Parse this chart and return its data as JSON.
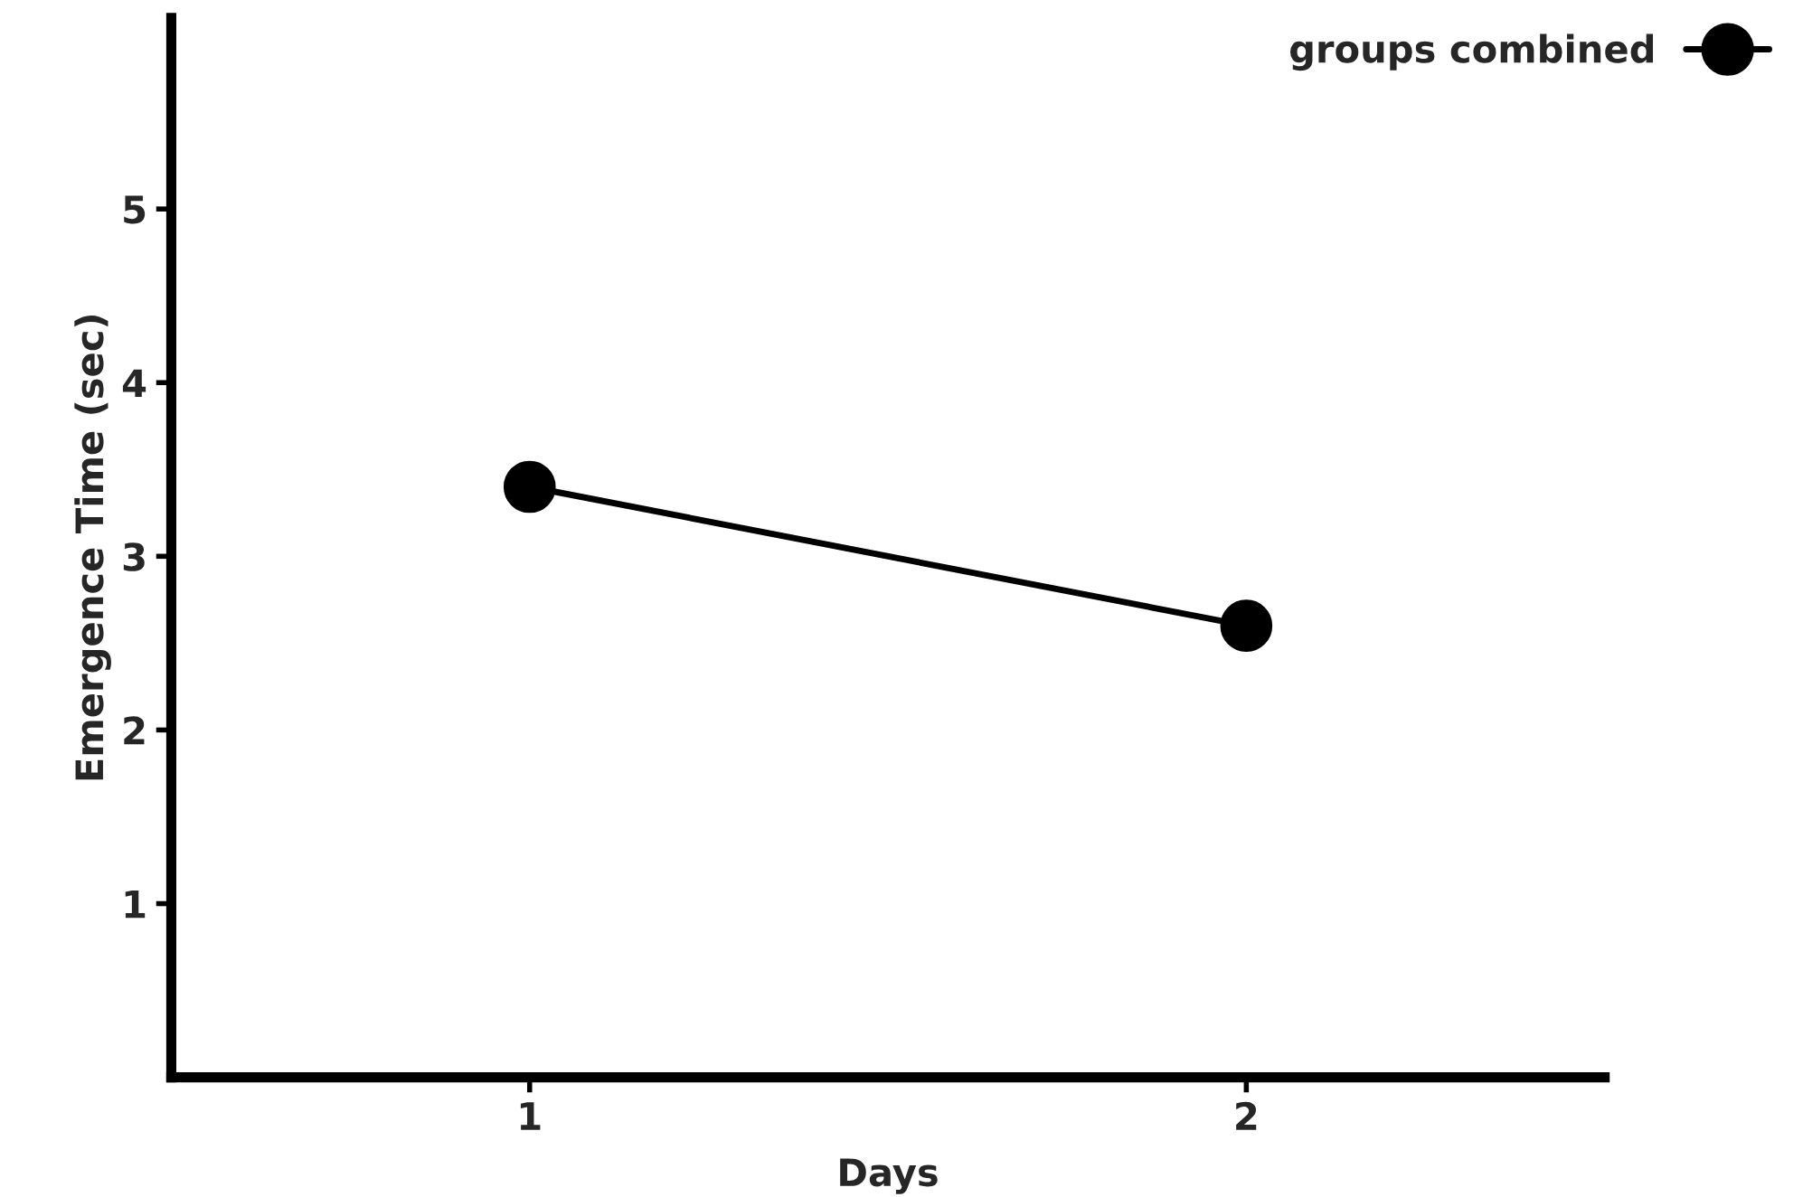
{
  "chart_data": {
    "type": "line",
    "xlabel": "Days",
    "ylabel": "Emergence Time (sec)",
    "x": [
      1,
      2
    ],
    "series": [
      {
        "name": "groups combined",
        "color": "#000000",
        "values": [
          3.4,
          2.6
        ]
      }
    ],
    "xlim": [
      0.5,
      2.5
    ],
    "xticks": [
      1,
      2
    ],
    "ylim": [
      0,
      6.1
    ],
    "yticks": [
      1,
      2,
      3,
      4,
      5
    ],
    "marker": "circle",
    "line_style": "solid",
    "grid": false,
    "legend": "top right"
  }
}
